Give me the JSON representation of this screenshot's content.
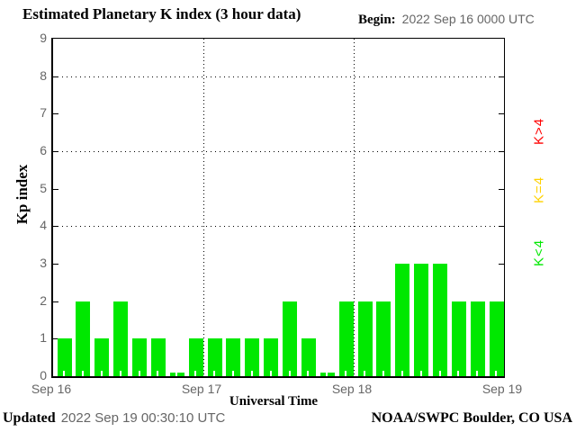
{
  "title": "Estimated Planetary K index (3 hour data)",
  "begin_label": "Begin:",
  "begin_value": "2022 Sep 16 0000 UTC",
  "footer": {
    "updated_label": "Updated",
    "updated_value": "2022 Sep 19 00:30:10 UTC",
    "credit": "NOAA/SWPC Boulder, CO USA"
  },
  "chart_data": {
    "type": "bar",
    "title": "Estimated Planetary K index (3 hour data)",
    "ylabel": "Kp index",
    "xlabel": "Universal Time",
    "ylim": [
      0,
      9
    ],
    "yticks": [
      0,
      1,
      2,
      3,
      4,
      5,
      6,
      7,
      8,
      9
    ],
    "grid_y_dotted": [
      4,
      6,
      8
    ],
    "grid_on": true,
    "hours_per_bar": 3,
    "day_labels": [
      "Sep 16",
      "Sep 17",
      "Sep 18",
      "Sep 19"
    ],
    "series": [
      {
        "name": "Kp",
        "values": [
          1,
          2,
          1,
          2,
          1,
          1,
          0,
          1,
          1,
          1,
          1,
          1,
          2,
          1,
          0,
          2,
          2,
          2,
          3,
          3,
          3,
          2,
          2,
          2
        ]
      }
    ],
    "bar_color": "#00e800",
    "legend_position": "right",
    "legend": [
      {
        "label": "K>4",
        "color": "#ff0000"
      },
      {
        "label": "K=4",
        "color": "#ffd200"
      },
      {
        "label": "K<4",
        "color": "#00e800"
      }
    ]
  }
}
